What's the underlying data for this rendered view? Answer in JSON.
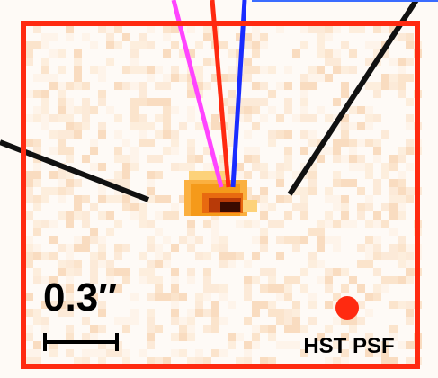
{
  "scale_label": "0.3″",
  "psf_label": "HST PSF"
}
